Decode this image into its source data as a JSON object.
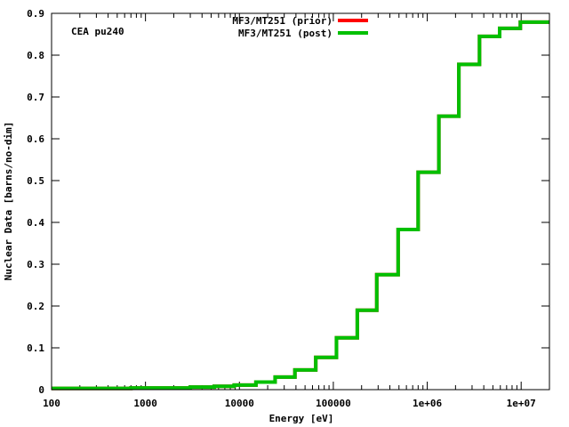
{
  "chart_data": {
    "type": "line",
    "step": true,
    "annotation": "CEA pu240",
    "xlabel": "Energy [eV]",
    "ylabel": "Nuclear Data [barns/no-dim]",
    "x_scale": "log",
    "xlim": [
      100,
      20000000
    ],
    "ylim": [
      0,
      0.9
    ],
    "x_ticks": [
      {
        "value": 100,
        "label": "100"
      },
      {
        "value": 1000,
        "label": "1000"
      },
      {
        "value": 10000,
        "label": "10000"
      },
      {
        "value": 100000,
        "label": "100000"
      },
      {
        "value": 1000000,
        "label": "1e+06"
      },
      {
        "value": 10000000,
        "label": "1e+07"
      }
    ],
    "y_ticks": [
      {
        "value": 0,
        "label": "0"
      },
      {
        "value": 0.1,
        "label": "0.1"
      },
      {
        "value": 0.2,
        "label": "0.2"
      },
      {
        "value": 0.3,
        "label": "0.3"
      },
      {
        "value": 0.4,
        "label": "0.4"
      },
      {
        "value": 0.5,
        "label": "0.5"
      },
      {
        "value": 0.6,
        "label": "0.6"
      },
      {
        "value": 0.7,
        "label": "0.7"
      },
      {
        "value": 0.8,
        "label": "0.8"
      },
      {
        "value": 0.9,
        "label": "0.9"
      }
    ],
    "grid": false,
    "legend_position": "top-center",
    "series": [
      {
        "name": "MF3/MT251 (prior)",
        "color": "#ff0000",
        "x": [
          100,
          700,
          3000,
          5400,
          8800,
          15000,
          24000,
          39000,
          65000,
          108000,
          180000,
          290000,
          490000,
          800000,
          1330000,
          2170000,
          3600000,
          5900000,
          9800000,
          20000000
        ],
        "y": [
          0.003,
          0.004,
          0.006,
          0.008,
          0.011,
          0.018,
          0.03,
          0.047,
          0.077,
          0.124,
          0.19,
          0.275,
          0.383,
          0.52,
          0.654,
          0.778,
          0.845,
          0.864,
          0.879,
          0.879
        ]
      },
      {
        "name": "MF3/MT251 (post)",
        "color": "#00c000",
        "x": [
          100,
          700,
          3000,
          5400,
          8800,
          15000,
          24000,
          39000,
          65000,
          108000,
          180000,
          290000,
          490000,
          800000,
          1330000,
          2170000,
          3600000,
          5900000,
          9800000,
          20000000
        ],
        "y": [
          0.003,
          0.004,
          0.006,
          0.008,
          0.011,
          0.018,
          0.03,
          0.047,
          0.077,
          0.124,
          0.19,
          0.275,
          0.383,
          0.52,
          0.654,
          0.778,
          0.845,
          0.864,
          0.879,
          0.879
        ]
      }
    ]
  }
}
